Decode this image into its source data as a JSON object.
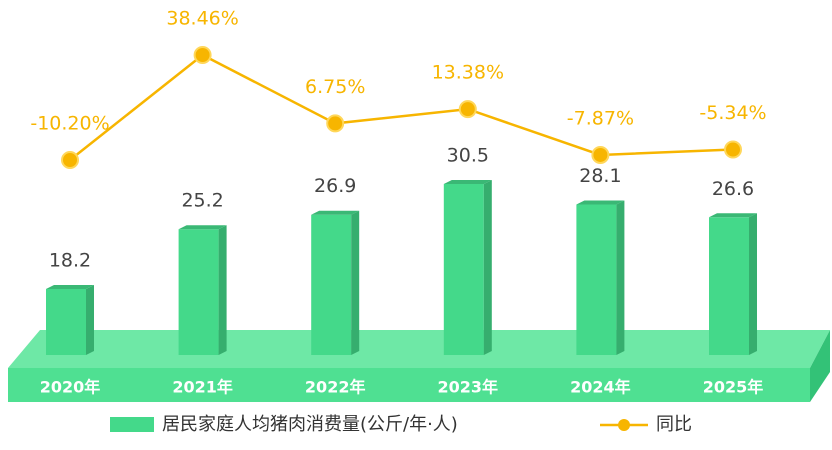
{
  "chart_data": {
    "type": "bar",
    "categories": [
      "2020年",
      "2021年",
      "2022年",
      "2023年",
      "2024年",
      "2025年"
    ],
    "series": [
      {
        "name": "居民家庭人均猪肉消费量(公斤/年·人)",
        "type": "bar",
        "color": "#44d98a",
        "values": [
          18.2,
          25.2,
          26.9,
          30.5,
          28.1,
          26.6
        ]
      },
      {
        "name": "同比",
        "type": "line",
        "color": "#f7b500",
        "values": [
          -10.2,
          38.46,
          6.75,
          13.38,
          -7.87,
          -5.34
        ],
        "value_labels": [
          "-10.20%",
          "38.46%",
          "6.75%",
          "13.38%",
          "-7.87%",
          "-5.34%"
        ]
      }
    ]
  }
}
